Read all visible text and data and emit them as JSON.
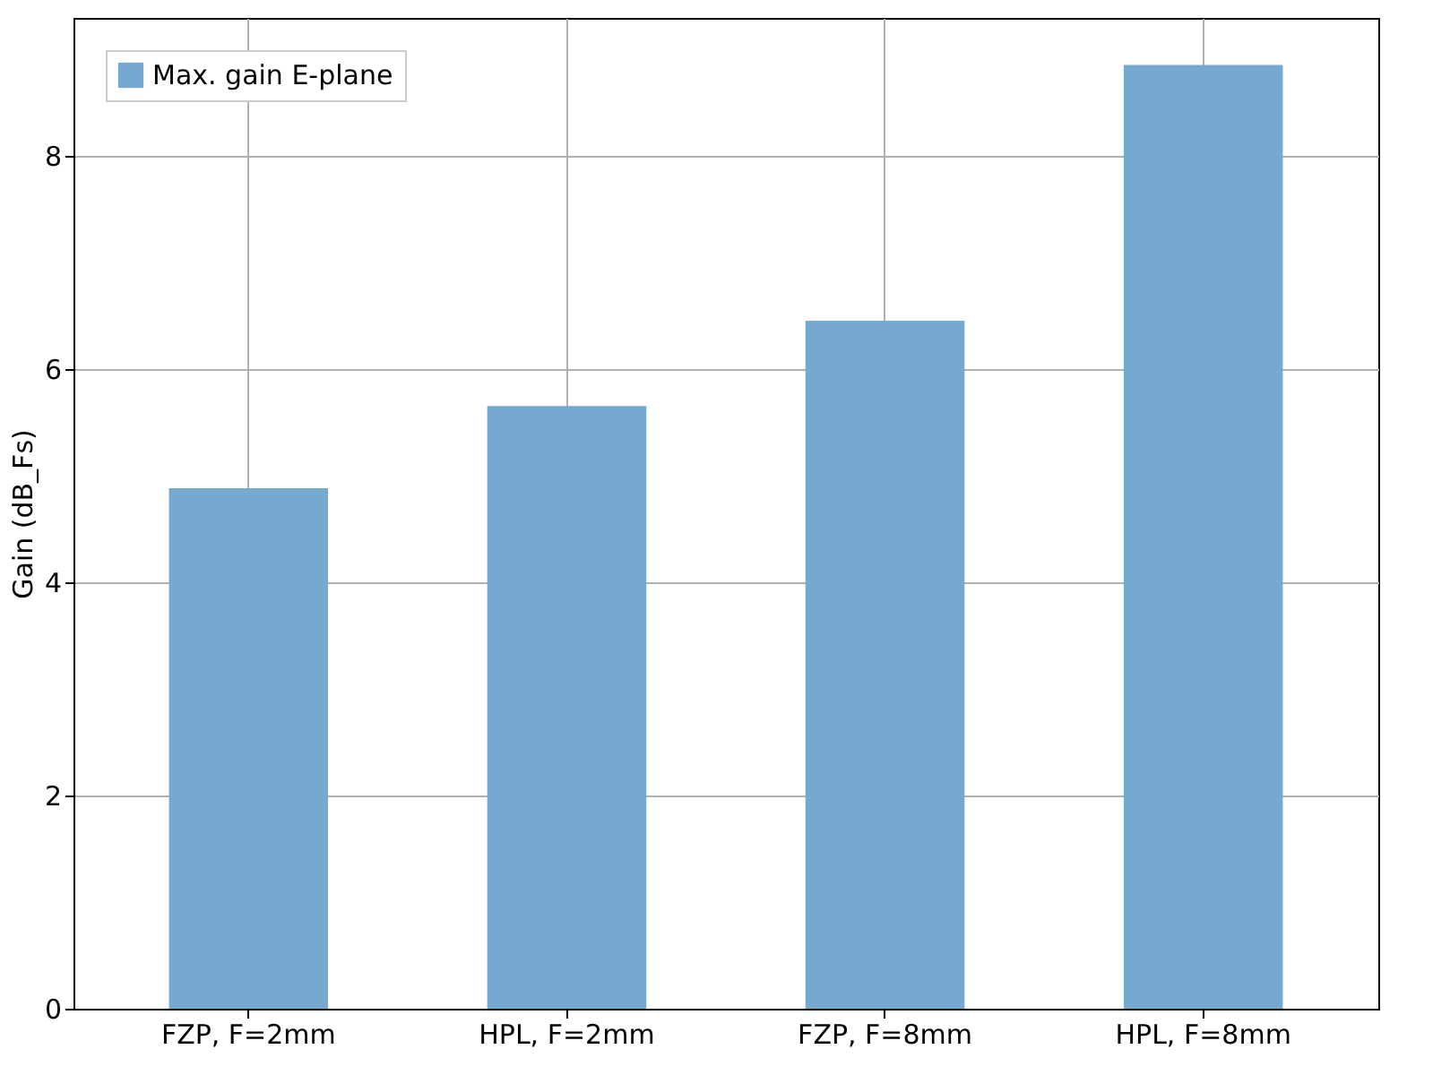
{
  "chart_data": {
    "type": "bar",
    "ylabel": "Gain (dB_Fs)",
    "categories": [
      "FZP, F=2mm",
      "HPL, F=2mm",
      "FZP, F=8mm",
      "HPL, F=8mm"
    ],
    "series": [
      {
        "name": "Max. gain E-plane",
        "color": "#75a9cf",
        "values": [
          4.88,
          5.65,
          6.45,
          8.85
        ]
      }
    ],
    "ylim": [
      0,
      9.29
    ],
    "yticks": [
      0,
      2,
      4,
      6,
      8
    ],
    "grid": true,
    "legend": "top left"
  }
}
